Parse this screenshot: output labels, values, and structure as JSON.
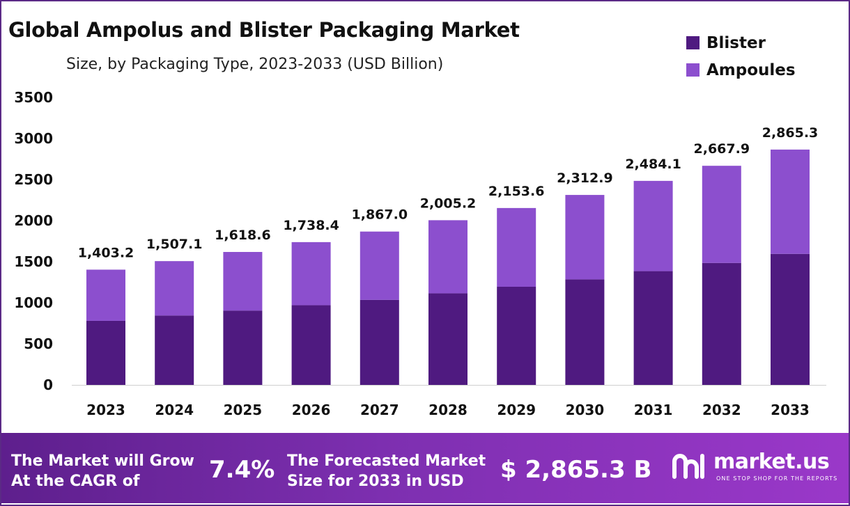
{
  "title": "Global Ampolus and Blister Packaging Market",
  "subtitle": "Size, by Packaging Type, 2023-2033 (USD Billion)",
  "legend": [
    {
      "label": "Blister",
      "color": "#4f1a80"
    },
    {
      "label": "Ampoules",
      "color": "#8c4fce"
    }
  ],
  "chart_data": {
    "type": "bar",
    "stacked": true,
    "categories": [
      "2023",
      "2024",
      "2025",
      "2026",
      "2027",
      "2028",
      "2029",
      "2030",
      "2031",
      "2032",
      "2033"
    ],
    "series": [
      {
        "name": "Blister",
        "color": "#4f1a80",
        "values": [
          780,
          845,
          905,
          970,
          1035,
          1115,
          1195,
          1285,
          1385,
          1485,
          1595
        ]
      },
      {
        "name": "Ampoules",
        "color": "#8c4fce",
        "values": [
          623.2,
          662.1,
          713.6,
          768.4,
          832.0,
          890.2,
          958.6,
          1027.9,
          1099.1,
          1182.9,
          1270.3
        ]
      }
    ],
    "totals": [
      1403.2,
      1507.1,
      1618.6,
      1738.4,
      1867.0,
      2005.2,
      2153.6,
      2312.9,
      2484.1,
      2667.9,
      2865.3
    ],
    "total_labels": [
      "1,403.2",
      "1,507.1",
      "1,618.6",
      "1,738.4",
      "1,867.0",
      "2,005.2",
      "2,153.6",
      "2,312.9",
      "2,484.1",
      "2,667.9",
      "2,865.3"
    ],
    "yticks": [
      "0",
      "500",
      "1000",
      "1500",
      "2000",
      "2500",
      "3000",
      "3500"
    ],
    "ylim": [
      0,
      3500
    ],
    "grid": false,
    "legend_position": "top-right"
  },
  "footer": {
    "cagr_text_line1": "The Market will Grow",
    "cagr_text_line2": "At the CAGR of",
    "cagr_value": "7.4%",
    "forecast_text_line1": "The Forecasted Market",
    "forecast_text_line2": "Size for 2033 in USD",
    "forecast_value": "$ 2,865.3 B",
    "brand_name": "market.us",
    "brand_tagline": "ONE STOP SHOP FOR THE REPORTS"
  }
}
